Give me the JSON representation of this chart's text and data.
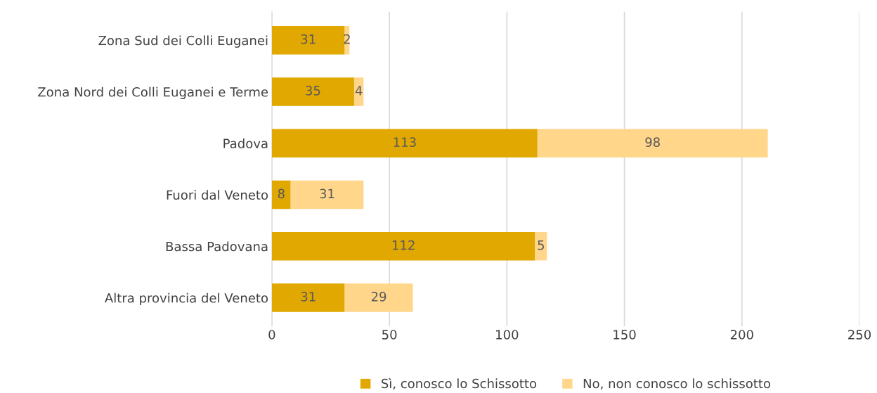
{
  "chart_data": {
    "type": "bar",
    "orientation": "horizontal",
    "stacked": true,
    "categories": [
      "Zona Sud dei Colli Euganei",
      "Zona Nord dei Colli Euganei e Terme",
      "Padova",
      "Fuori dal Veneto",
      "Bassa Padovana",
      "Altra provincia del Veneto"
    ],
    "series": [
      {
        "name": "Sì, conosco lo Schissotto",
        "color": "#e0a800",
        "values": [
          31,
          35,
          113,
          8,
          112,
          31
        ]
      },
      {
        "name": "No, non conosco lo schissotto",
        "color": "#ffd68a",
        "values": [
          2,
          4,
          98,
          31,
          5,
          29
        ]
      }
    ],
    "xlim": [
      0,
      250
    ],
    "xticks": [
      0,
      50,
      100,
      150,
      200,
      250
    ],
    "grid": "x",
    "legend": "bottom",
    "data_labels": true
  }
}
